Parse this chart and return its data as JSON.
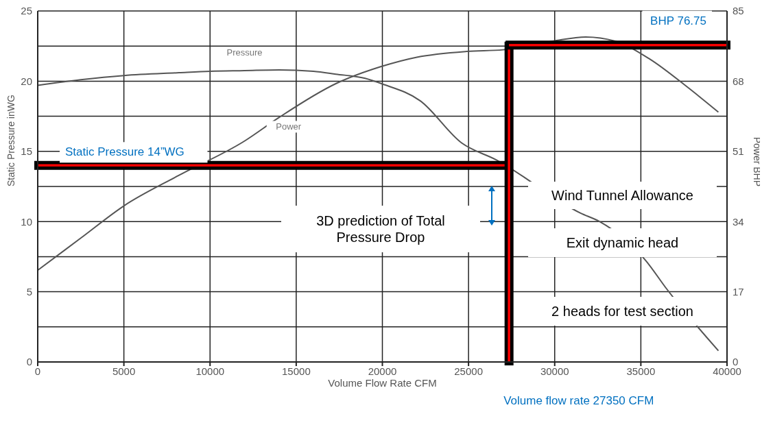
{
  "chart_data": {
    "type": "line",
    "xlabel": "Volume Flow Rate CFM",
    "ylabel": "Static Pressure inWG",
    "y2label": "Power BHP",
    "xlim": [
      0,
      40000
    ],
    "xticks": [
      0,
      5000,
      10000,
      15000,
      20000,
      25000,
      30000,
      35000,
      40000
    ],
    "ylim": [
      0,
      25
    ],
    "yticks": [
      0,
      {
        "value": 2.5,
        "label": null
      },
      5,
      {
        "value": 7.5,
        "label": null
      },
      10,
      {
        "value": 12.5,
        "label": null
      },
      15,
      {
        "value": 17.5,
        "label": null
      },
      20,
      {
        "value": 22.5,
        "label": null
      },
      25
    ],
    "y2lim": [
      0,
      85
    ],
    "y2ticks": [
      0,
      17,
      34,
      51,
      68,
      85
    ],
    "grid": true,
    "marker": "none",
    "series": [
      {
        "name": "Pressure",
        "color": "#555555",
        "x": [
          0,
          2500,
          5000,
          8200,
          10000,
          12000,
          14000,
          16000,
          17300,
          19000,
          20000,
          22200,
          24600,
          26600,
          31500,
          32600,
          35300,
          36500,
          39500
        ],
        "values": [
          19.7,
          20.1,
          20.4,
          20.6,
          20.7,
          20.75,
          20.8,
          20.7,
          20.5,
          20.2,
          19.8,
          18.6,
          15.6,
          14.4,
          10.6,
          10.0,
          7.2,
          5.2,
          0.8
        ]
      },
      {
        "name": "Power",
        "color": "#555555",
        "axis": "y2",
        "x": [
          0,
          2500,
          5000,
          8200,
          12000,
          14000,
          17300,
          19900,
          22000,
          24900,
          27000,
          29900,
          31800,
          33500,
          35500,
          37600,
          39500
        ],
        "values": [
          22.2,
          30,
          37.8,
          45.2,
          53.5,
          59.2,
          67.4,
          71.5,
          73.8,
          75.2,
          75.6,
          77.7,
          78.7,
          77.7,
          73.4,
          66.9,
          60.5
        ]
      }
    ],
    "ref_lines": [
      {
        "axis": "y",
        "value": 14,
        "label": "Static Pressure 14”WG",
        "color": "#ff0000"
      },
      {
        "axis": "x",
        "value": 27350,
        "label": "Volume flow rate 27350 CFM",
        "color": "#ff0000"
      },
      {
        "axis": "y2",
        "value": 76.75,
        "label": "BHP 76.75",
        "color": "#ff0000"
      }
    ],
    "annotations": [
      "Wind Tunnel Allowance",
      "Exit dynamic head",
      "2 heads for test section",
      "3D prediction of Total Pressure Drop"
    ]
  }
}
